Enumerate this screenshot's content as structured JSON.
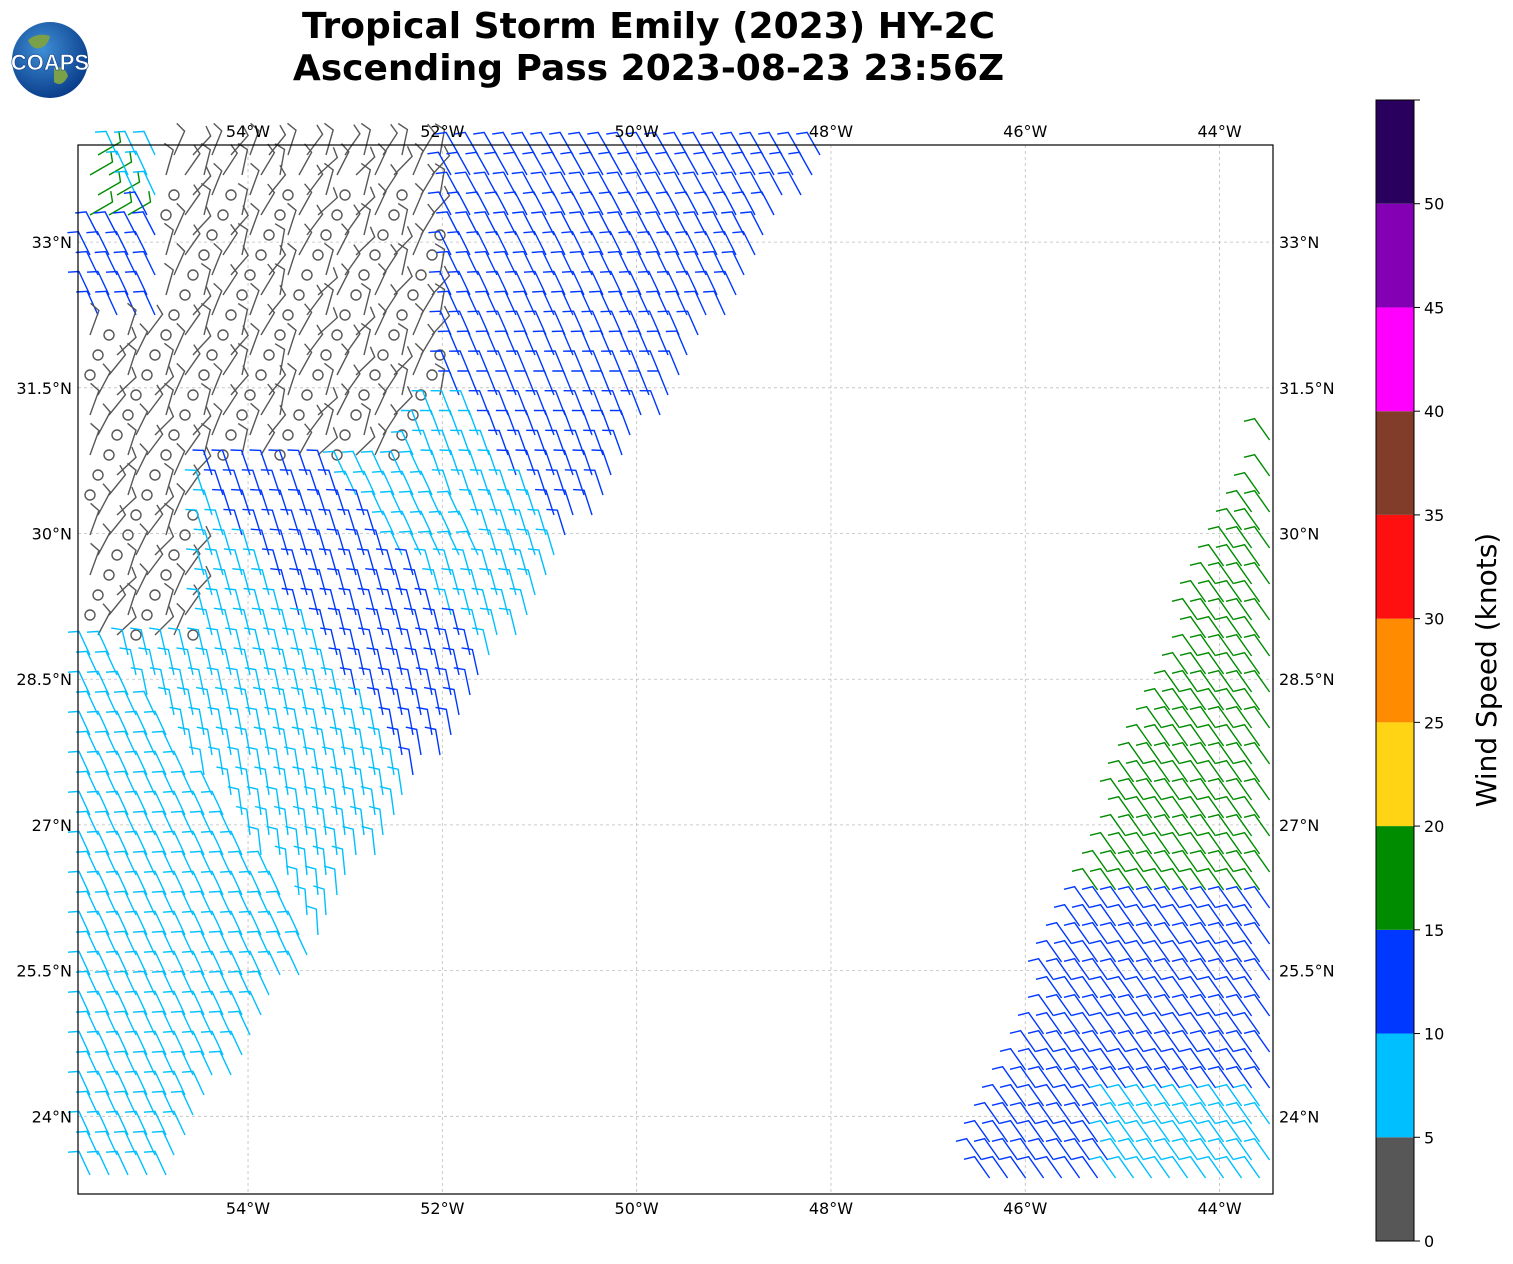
{
  "title": {
    "line1": "Tropical Storm Emily (2023) HY-2C",
    "line2": "Ascending Pass 2023-08-23 23:56Z"
  },
  "logo": {
    "text": "COAPS",
    "icon": "globe-logo-icon"
  },
  "map": {
    "lon_range": [
      -55.75,
      -43.45
    ],
    "lat_range": [
      23.2,
      34.0
    ],
    "lon_ticks": [
      {
        "value": -54,
        "label": "54°W"
      },
      {
        "value": -52,
        "label": "52°W"
      },
      {
        "value": -50,
        "label": "50°W"
      },
      {
        "value": -48,
        "label": "48°W"
      },
      {
        "value": -46,
        "label": "46°W"
      },
      {
        "value": -44,
        "label": "44°W"
      }
    ],
    "lat_ticks": [
      {
        "value": 33,
        "label": "33°N"
      },
      {
        "value": 31.5,
        "label": "31.5°N"
      },
      {
        "value": 30,
        "label": "30°N"
      },
      {
        "value": 28.5,
        "label": "28.5°N"
      },
      {
        "value": 27,
        "label": "27°N"
      },
      {
        "value": 25.5,
        "label": "25.5°N"
      },
      {
        "value": 24,
        "label": "24°N"
      }
    ],
    "gridlines": true
  },
  "colorbar": {
    "label": "Wind Speed (knots)",
    "bins": [
      {
        "min": 0,
        "max": 5,
        "color": "#575757"
      },
      {
        "min": 5,
        "max": 10,
        "color": "#00bfff"
      },
      {
        "min": 10,
        "max": 15,
        "color": "#0038ff"
      },
      {
        "min": 15,
        "max": 20,
        "color": "#008c00"
      },
      {
        "min": 20,
        "max": 25,
        "color": "#ffd414"
      },
      {
        "min": 25,
        "max": 30,
        "color": "#ff8c00"
      },
      {
        "min": 30,
        "max": 35,
        "color": "#ff1010"
      },
      {
        "min": 35,
        "max": 40,
        "color": "#823c2a"
      },
      {
        "min": 40,
        "max": 45,
        "color": "#ff00ff"
      },
      {
        "min": 45,
        "max": 50,
        "color": "#8400b4"
      },
      {
        "min": 50,
        "max": 55,
        "color": "#2a005e"
      }
    ],
    "ticks": [
      {
        "value": 0,
        "label": "0"
      },
      {
        "value": 5,
        "label": "5"
      },
      {
        "value": 10,
        "label": "10"
      },
      {
        "value": 15,
        "label": "15"
      },
      {
        "value": 20,
        "label": "20"
      },
      {
        "value": 25,
        "label": "25"
      },
      {
        "value": 30,
        "label": "30"
      },
      {
        "value": 35,
        "label": "35"
      },
      {
        "value": 40,
        "label": "40"
      },
      {
        "value": 45,
        "label": "45"
      },
      {
        "value": 50,
        "label": "50"
      }
    ]
  },
  "swaths": [
    {
      "name": "west",
      "corners_lonlat": [
        [
          -55.75,
          33.95
        ],
        [
          -47.95,
          34.0
        ],
        [
          -54.9,
          23.25
        ],
        [
          -55.75,
          23.25
        ]
      ]
    },
    {
      "name": "east",
      "corners_lonlat": [
        [
          -43.45,
          31.1
        ],
        [
          -43.45,
          23.2
        ],
        [
          -46.6,
          23.2
        ]
      ]
    }
  ]
}
